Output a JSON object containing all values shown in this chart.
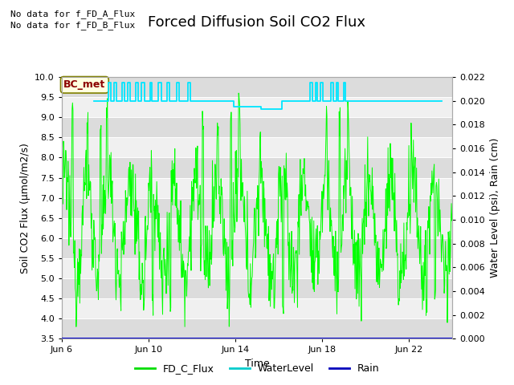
{
  "title": "Forced Diffusion Soil CO2 Flux",
  "xlabel": "Time",
  "ylabel_left": "Soil CO2 Flux (μmol/m2/s)",
  "ylabel_right": "Water Level (psi), Rain (cm)",
  "no_data_text_1": "No data for f_FD_A_Flux",
  "no_data_text_2": "No data for f_FD_B_Flux",
  "bc_met_label": "BC_met",
  "ylim_left": [
    3.5,
    10.0
  ],
  "ylim_right": [
    0.0,
    0.022
  ],
  "yticks_left": [
    3.5,
    4.0,
    4.5,
    5.0,
    5.5,
    6.0,
    6.5,
    7.0,
    7.5,
    8.0,
    8.5,
    9.0,
    9.5,
    10.0
  ],
  "yticks_right": [
    0.0,
    0.002,
    0.004,
    0.006,
    0.008,
    0.01,
    0.012,
    0.014,
    0.016,
    0.018,
    0.02,
    0.022
  ],
  "xtick_labels": [
    "Jun 6",
    "Jun 10",
    "Jun 14",
    "Jun 18",
    "Jun 22"
  ],
  "xtick_positions": [
    0,
    4,
    8,
    12,
    16
  ],
  "xlim": [
    0,
    18
  ],
  "background_color": "#ffffff",
  "plot_bg_light": "#f0f0f0",
  "plot_bg_dark": "#dcdcdc",
  "grid_color": "#ffffff",
  "fd_c_flux_color": "#00ff00",
  "water_level_color": "#00e5ff",
  "rain_color": "#0000cc",
  "title_fontsize": 13,
  "label_fontsize": 9,
  "tick_fontsize": 8,
  "no_data_fontsize": 8,
  "legend_fd_color": "#00dd00",
  "legend_wl_color": "#00cccc",
  "legend_rain_color": "#0000bb"
}
